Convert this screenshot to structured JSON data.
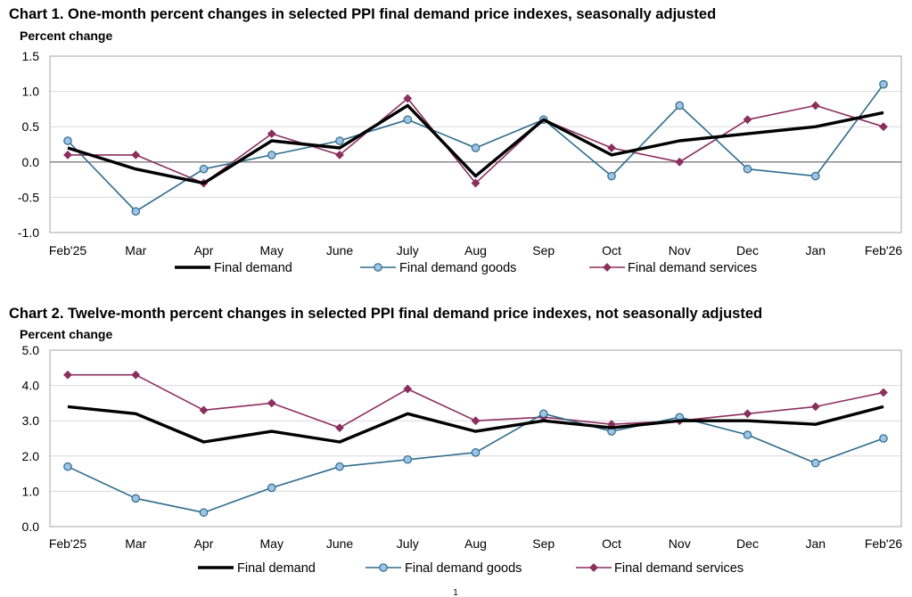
{
  "page_number": "1",
  "chart_data": [
    {
      "type": "line",
      "title": "Chart 1. One-month percent changes in selected PPI final demand price indexes, seasonally adjusted",
      "ylabel": "Percent change",
      "xlabel": "",
      "ylim": [
        -1.0,
        1.5
      ],
      "yticks": [
        1.5,
        1.0,
        0.5,
        0.0,
        -0.5,
        -1.0
      ],
      "ytick_labels": [
        "1.5",
        "1.0",
        "0.5",
        "0.0",
        "-0.5",
        "-1.0"
      ],
      "categories": [
        "Feb'25",
        "Mar",
        "Apr",
        "May",
        "June",
        "July",
        "Aug",
        "Sep",
        "Oct",
        "Nov",
        "Dec",
        "Jan",
        "Feb'26"
      ],
      "series": [
        {
          "name": "Final demand",
          "color": "#000000",
          "marker": "none",
          "values": [
            0.2,
            -0.1,
            -0.3,
            0.3,
            0.2,
            0.8,
            -0.2,
            0.6,
            0.1,
            0.3,
            0.4,
            0.5,
            0.7
          ]
        },
        {
          "name": "Final demand goods",
          "color": "#2E6B8A",
          "marker": "circle",
          "fill": "#9DC3E6",
          "values": [
            0.3,
            -0.7,
            -0.1,
            0.1,
            0.3,
            0.6,
            0.2,
            0.6,
            -0.2,
            0.8,
            -0.1,
            -0.2,
            1.1
          ]
        },
        {
          "name": "Final demand services",
          "color": "#8B2F5E",
          "marker": "diamond",
          "fill": "#8B2F5E",
          "values": [
            0.1,
            0.1,
            -0.3,
            0.4,
            0.1,
            0.9,
            -0.3,
            0.6,
            0.2,
            0.0,
            0.6,
            0.8,
            0.5
          ]
        }
      ],
      "grid": true,
      "zero_line": true,
      "legend": "bottom"
    },
    {
      "type": "line",
      "title": "Chart 2. Twelve-month percent changes in selected PPI final demand price indexes, not seasonally adjusted",
      "ylabel": "Percent change",
      "xlabel": "",
      "ylim": [
        0.0,
        5.0
      ],
      "yticks": [
        5.0,
        4.0,
        3.0,
        2.0,
        1.0,
        0.0
      ],
      "ytick_labels": [
        "5.0",
        "4.0",
        "3.0",
        "2.0",
        "1.0",
        "0.0"
      ],
      "categories": [
        "Feb'25",
        "Mar",
        "Apr",
        "May",
        "June",
        "July",
        "Aug",
        "Sep",
        "Oct",
        "Nov",
        "Dec",
        "Jan",
        "Feb'26"
      ],
      "series": [
        {
          "name": "Final demand",
          "color": "#000000",
          "marker": "none",
          "values": [
            3.4,
            3.2,
            2.4,
            2.7,
            2.4,
            3.2,
            2.7,
            3.0,
            2.8,
            3.0,
            3.0,
            2.9,
            3.4
          ]
        },
        {
          "name": "Final demand goods",
          "color": "#2E6B8A",
          "marker": "circle",
          "fill": "#9DC3E6",
          "values": [
            1.7,
            0.8,
            0.4,
            1.1,
            1.7,
            1.9,
            2.1,
            3.2,
            2.7,
            3.1,
            2.6,
            1.8,
            2.5
          ]
        },
        {
          "name": "Final demand services",
          "color": "#8B2F5E",
          "marker": "diamond",
          "fill": "#8B2F5E",
          "values": [
            4.3,
            4.3,
            3.3,
            3.5,
            2.8,
            3.9,
            3.0,
            3.1,
            2.9,
            3.0,
            3.2,
            3.4,
            3.8
          ]
        }
      ],
      "grid": true,
      "zero_line": false,
      "legend": "bottom"
    }
  ]
}
